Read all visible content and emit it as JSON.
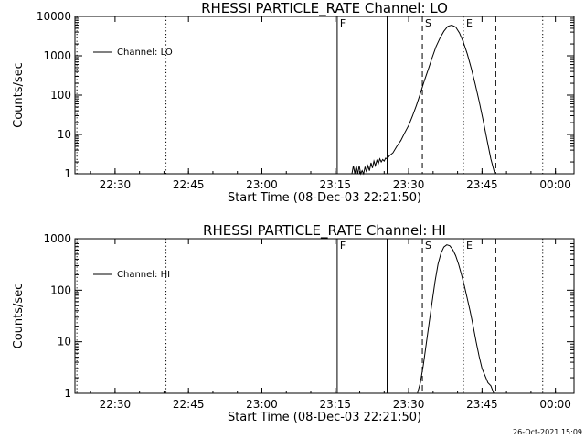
{
  "footer": {
    "timestamp": "26-Oct-2021 15:09"
  },
  "chart_data": [
    {
      "type": "line",
      "title": "RHESSI PARTICLE_RATE Channel: LO",
      "xlabel": "Start Time (08-Dec-03 22:21:50)",
      "ylabel": "Counts/sec",
      "x_unit": "minutes after 22:21:50",
      "xlim": [
        0,
        102
      ],
      "ylim": [
        1,
        10000
      ],
      "y_scale": "log",
      "x_ticks": [
        {
          "x": 8.2,
          "label": "22:30"
        },
        {
          "x": 23.2,
          "label": "22:45"
        },
        {
          "x": 38.2,
          "label": "23:00"
        },
        {
          "x": 53.2,
          "label": "23:15"
        },
        {
          "x": 68.2,
          "label": "23:30"
        },
        {
          "x": 83.2,
          "label": "23:45"
        },
        {
          "x": 98.2,
          "label": "00:00"
        }
      ],
      "y_ticks": [
        {
          "y": 1,
          "label": "1"
        },
        {
          "y": 10,
          "label": "10"
        },
        {
          "y": 100,
          "label": "100"
        },
        {
          "y": 1000,
          "label": "1000"
        },
        {
          "y": 10000,
          "label": "10000"
        }
      ],
      "legend": {
        "position": "top-left",
        "entries": [
          "Channel: LO"
        ]
      },
      "markers": [
        {
          "x": 0.4,
          "style": "dotted",
          "label": ""
        },
        {
          "x": 18.6,
          "style": "dotted",
          "label": ""
        },
        {
          "x": 53.6,
          "style": "solid",
          "label": "F"
        },
        {
          "x": 63.8,
          "style": "solid",
          "label": ""
        },
        {
          "x": 71.0,
          "style": "dashed",
          "label": "S"
        },
        {
          "x": 79.4,
          "style": "dotted",
          "label": "E"
        },
        {
          "x": 86.0,
          "style": "dashed",
          "label": ""
        },
        {
          "x": 95.6,
          "style": "dotted",
          "label": ""
        }
      ],
      "series": [
        {
          "name": "Channel: LO",
          "x": [
            56.6,
            56.9,
            57.2,
            57.5,
            57.8,
            58.1,
            58.4,
            58.7,
            59.0,
            59.3,
            59.6,
            59.9,
            60.2,
            60.5,
            60.8,
            61.1,
            61.4,
            61.7,
            62.0,
            62.3,
            62.6,
            62.9,
            63.2,
            63.5,
            63.8,
            64.3,
            65.0,
            65.8,
            66.6,
            67.4,
            68.2,
            69.0,
            69.8,
            70.6,
            71.4,
            72.2,
            73.0,
            73.8,
            74.6,
            75.4,
            76.2,
            77.0,
            77.8,
            78.6,
            79.4,
            80.2,
            81.0,
            81.8,
            82.6,
            83.4,
            84.2,
            85.0,
            85.8
          ],
          "y": [
            1.0,
            1.6,
            1.0,
            1.6,
            1.0,
            1.6,
            1.0,
            1.2,
            1.0,
            1.5,
            1.1,
            1.6,
            1.2,
            1.9,
            1.4,
            2.1,
            1.6,
            2.2,
            1.8,
            2.4,
            2.0,
            2.3,
            2.1,
            2.5,
            2.4,
            2.9,
            3.4,
            5.0,
            7.0,
            11,
            17,
            30,
            55,
            110,
            230,
            450,
            900,
            1700,
            2800,
            4200,
            5600,
            6000,
            5400,
            3800,
            2200,
            1100,
            480,
            190,
            70,
            24,
            7.5,
            2.4,
            1.0
          ]
        }
      ]
    },
    {
      "type": "line",
      "title": "RHESSI PARTICLE_RATE Channel: HI",
      "xlabel": "Start Time (08-Dec-03 22:21:50)",
      "ylabel": "Counts/sec",
      "x_unit": "minutes after 22:21:50",
      "xlim": [
        0,
        102
      ],
      "ylim": [
        1,
        1000
      ],
      "y_scale": "log",
      "x_ticks": [
        {
          "x": 8.2,
          "label": "22:30"
        },
        {
          "x": 23.2,
          "label": "22:45"
        },
        {
          "x": 38.2,
          "label": "23:00"
        },
        {
          "x": 53.2,
          "label": "23:15"
        },
        {
          "x": 68.2,
          "label": "23:30"
        },
        {
          "x": 83.2,
          "label": "23:45"
        },
        {
          "x": 98.2,
          "label": "00:00"
        }
      ],
      "y_ticks": [
        {
          "y": 1,
          "label": "1"
        },
        {
          "y": 10,
          "label": "10"
        },
        {
          "y": 100,
          "label": "100"
        },
        {
          "y": 1000,
          "label": "1000"
        }
      ],
      "legend": {
        "position": "top-left",
        "entries": [
          "Channel: HI"
        ]
      },
      "markers": [
        {
          "x": 0.4,
          "style": "dotted",
          "label": ""
        },
        {
          "x": 18.6,
          "style": "dotted",
          "label": ""
        },
        {
          "x": 53.6,
          "style": "solid",
          "label": "F"
        },
        {
          "x": 63.8,
          "style": "solid",
          "label": ""
        },
        {
          "x": 71.0,
          "style": "dashed",
          "label": "S"
        },
        {
          "x": 79.4,
          "style": "dotted",
          "label": "E"
        },
        {
          "x": 86.0,
          "style": "dashed",
          "label": ""
        },
        {
          "x": 95.6,
          "style": "dotted",
          "label": ""
        }
      ],
      "series": [
        {
          "name": "Channel: HI",
          "x": [
            70.0,
            70.6,
            71.2,
            71.8,
            72.4,
            73.0,
            73.6,
            74.2,
            74.8,
            75.4,
            76.0,
            76.6,
            77.2,
            77.8,
            78.4,
            79.0,
            79.6,
            80.2,
            80.8,
            81.4,
            82.0,
            82.6,
            83.2,
            83.8,
            84.4,
            85.0,
            85.6
          ],
          "y": [
            1.0,
            1.6,
            3.5,
            9,
            24,
            60,
            150,
            320,
            520,
            690,
            760,
            730,
            620,
            470,
            320,
            200,
            120,
            68,
            38,
            20,
            10,
            5.2,
            3.0,
            2.2,
            1.6,
            1.4,
            1.0
          ]
        }
      ]
    }
  ]
}
